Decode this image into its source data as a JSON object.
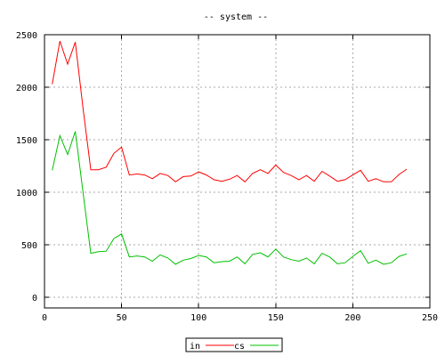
{
  "chart_data": {
    "type": "line",
    "title": "-- system --",
    "xlabel": "",
    "ylabel": "",
    "xlim": [
      0,
      250
    ],
    "ylim": [
      -100,
      2500
    ],
    "xticks": [
      0,
      50,
      100,
      150,
      200,
      250
    ],
    "yticks": [
      0,
      500,
      1000,
      1500,
      2000,
      2500
    ],
    "grid": true,
    "legend_position": "bottom-center",
    "x": [
      5,
      10,
      15,
      20,
      25,
      30,
      35,
      40,
      45,
      50,
      55,
      60,
      65,
      70,
      75,
      80,
      85,
      90,
      95,
      100,
      105,
      110,
      115,
      120,
      125,
      130,
      135,
      140,
      145,
      150,
      155,
      160,
      165,
      170,
      175,
      180,
      185,
      190,
      195,
      200,
      205,
      210,
      215,
      220,
      225,
      230,
      235
    ],
    "series": [
      {
        "name": "in",
        "color": "#ff0000",
        "values": [
          2030,
          2440,
          2220,
          2430,
          1800,
          1215,
          1215,
          1240,
          1370,
          1430,
          1165,
          1175,
          1165,
          1130,
          1180,
          1160,
          1100,
          1150,
          1155,
          1195,
          1165,
          1120,
          1105,
          1125,
          1160,
          1100,
          1180,
          1215,
          1180,
          1260,
          1190,
          1160,
          1120,
          1160,
          1105,
          1200,
          1155,
          1105,
          1120,
          1165,
          1210,
          1105,
          1130,
          1100,
          1100,
          1170,
          1220
        ]
      },
      {
        "name": "cs",
        "color": "#00c000",
        "values": [
          1210,
          1540,
          1360,
          1580,
          1000,
          420,
          435,
          440,
          560,
          605,
          385,
          395,
          385,
          345,
          405,
          375,
          315,
          355,
          370,
          400,
          385,
          330,
          340,
          345,
          385,
          320,
          410,
          425,
          385,
          460,
          385,
          360,
          345,
          375,
          320,
          420,
          385,
          320,
          330,
          390,
          445,
          325,
          355,
          315,
          330,
          390,
          415
        ]
      }
    ]
  }
}
